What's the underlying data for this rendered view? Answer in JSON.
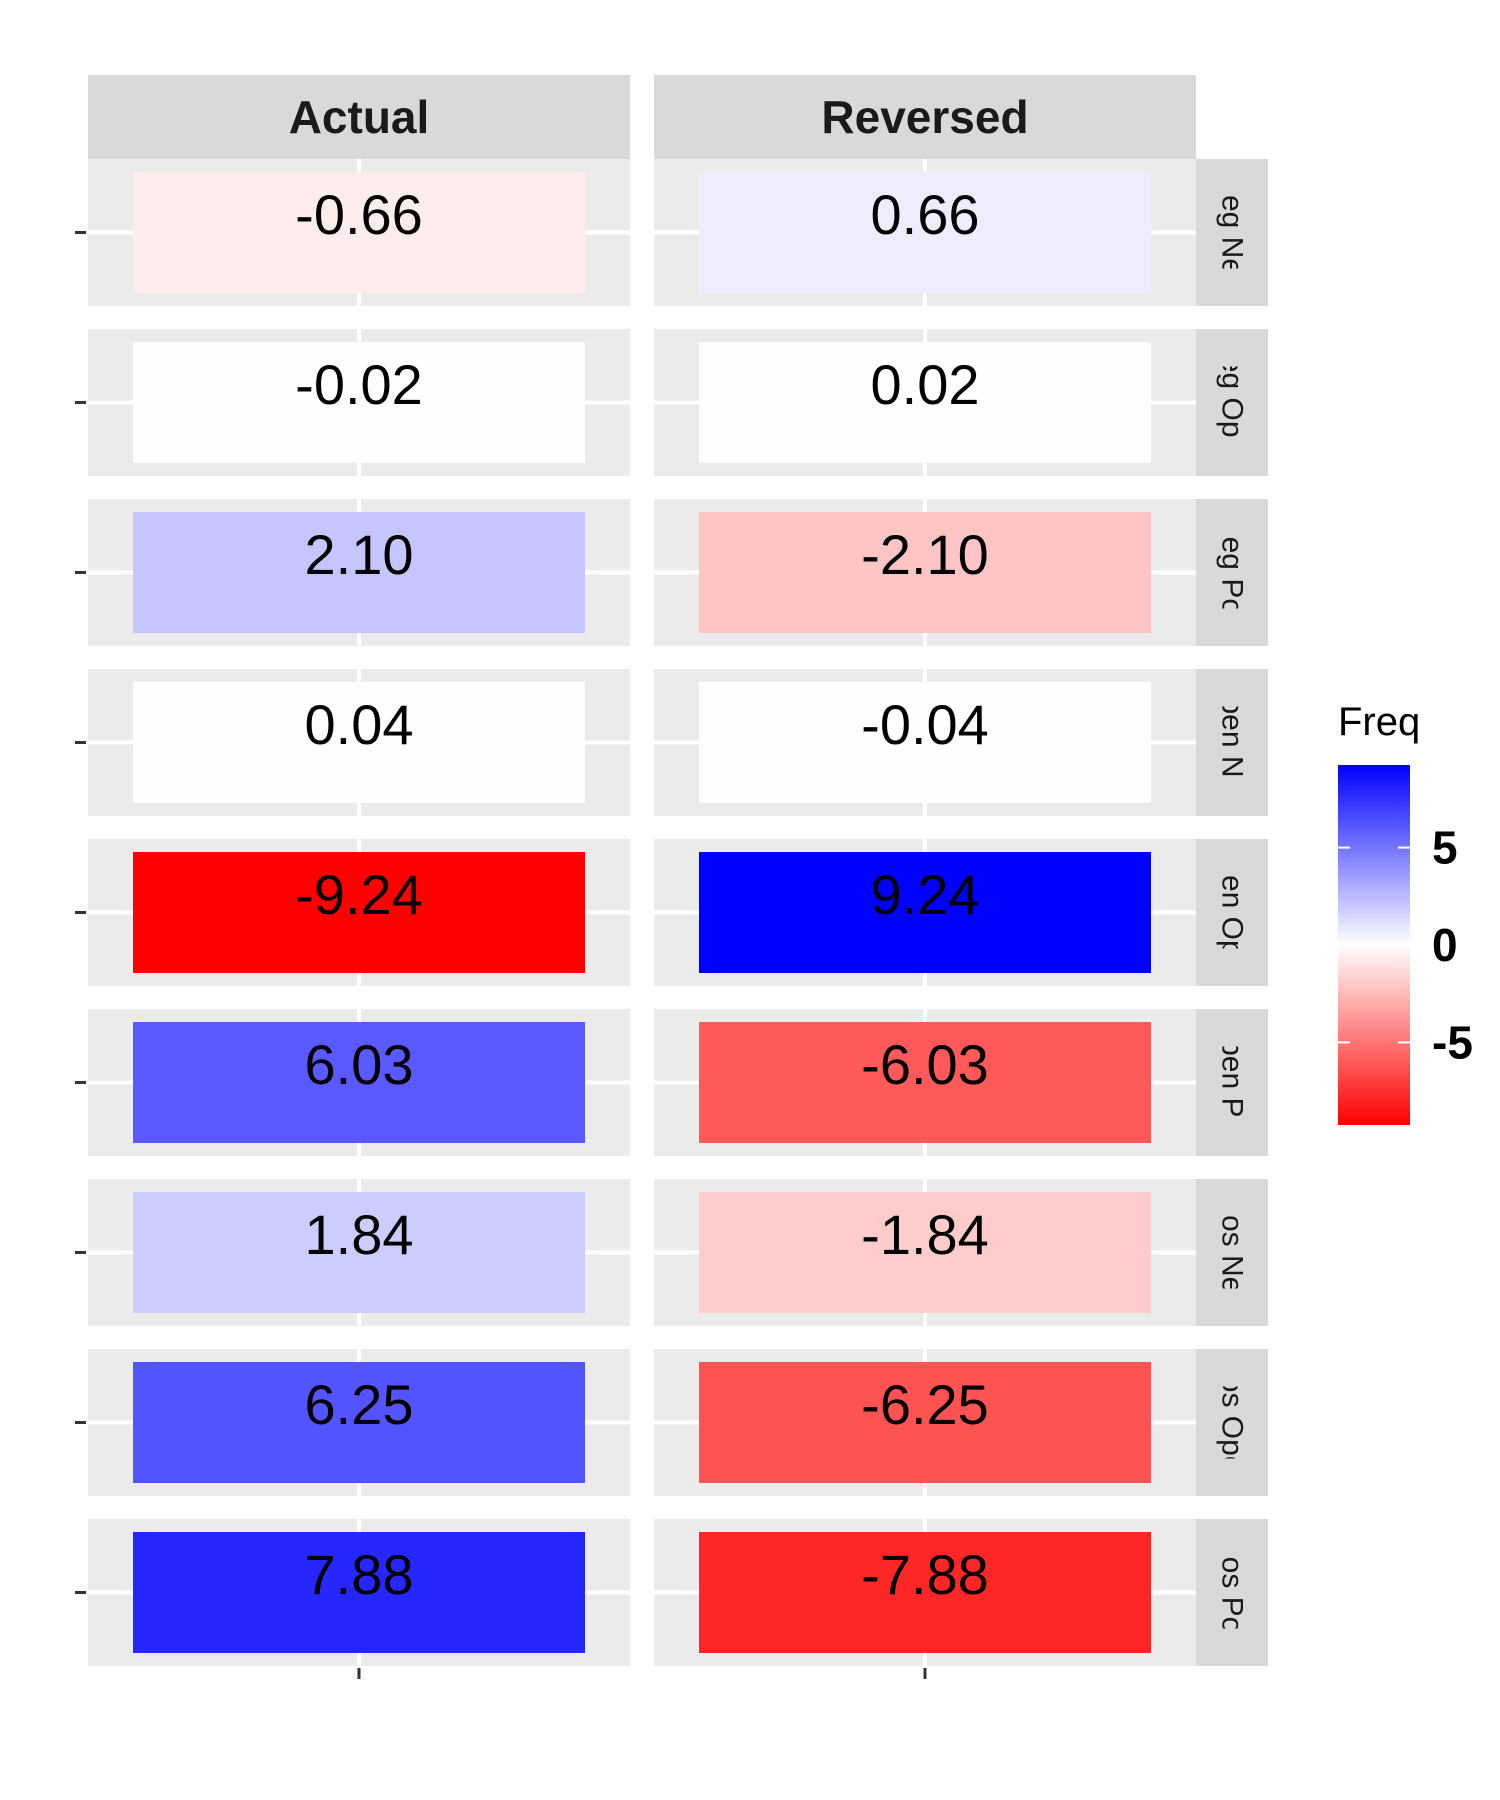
{
  "chart_data": {
    "type": "heatmap",
    "title": "",
    "xlabel": "",
    "ylabel": "",
    "columns": [
      "Actual",
      "Reversed"
    ],
    "rows": [
      "Neg Neg",
      "Neg Open",
      "Neg Pos",
      "Open Neg",
      "Open Open",
      "Open Pos",
      "Pos Neg",
      "Pos Open",
      "Pos Pos"
    ],
    "values": [
      [
        -0.66,
        0.66
      ],
      [
        -0.02,
        0.02
      ],
      [
        2.1,
        -2.1
      ],
      [
        0.04,
        -0.04
      ],
      [
        -9.24,
        9.24
      ],
      [
        6.03,
        -6.03
      ],
      [
        1.84,
        -1.84
      ],
      [
        6.25,
        -6.25
      ],
      [
        7.88,
        -7.88
      ]
    ],
    "value_labels": [
      [
        "-0.66",
        "0.66"
      ],
      [
        "-0.02",
        "0.02"
      ],
      [
        "2.10",
        "-2.10"
      ],
      [
        "0.04",
        "-0.04"
      ],
      [
        "-9.24",
        "9.24"
      ],
      [
        "6.03",
        "-6.03"
      ],
      [
        "1.84",
        "-1.84"
      ],
      [
        "6.25",
        "-6.25"
      ],
      [
        "7.88",
        "-7.88"
      ]
    ],
    "legend": {
      "title": "Freq",
      "position": "right",
      "ticks": [
        5,
        0,
        -5
      ],
      "tick_labels": [
        "5",
        "0",
        "-5"
      ],
      "range": [
        -9.24,
        9.24
      ]
    },
    "colors": {
      "low": "#ff0000",
      "mid": "#ffffff",
      "high": "#0000ff",
      "panel_background": "#ebebeb",
      "strip_background": "#d9d9d9",
      "gridline": "#ffffff"
    }
  }
}
